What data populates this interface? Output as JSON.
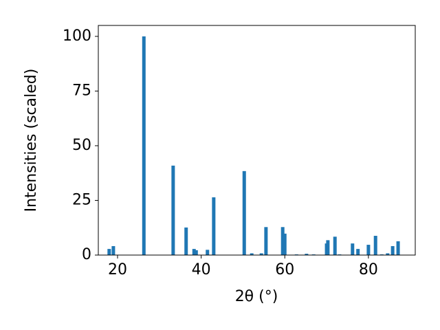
{
  "chart_data": {
    "type": "bar",
    "x": [
      18.0,
      19.0,
      26.3,
      33.3,
      36.4,
      38.3,
      38.8,
      41.5,
      43.0,
      50.3,
      52.1,
      54.4,
      55.5,
      59.5,
      60.0,
      62.8,
      65.2,
      66.9,
      70.0,
      70.3,
      72.0,
      73.1,
      76.2,
      77.5,
      80.0,
      81.7,
      83.2,
      84.6,
      85.8,
      87.1
    ],
    "values": [
      2.8,
      4.1,
      100,
      40.9,
      12.6,
      2.8,
      2.2,
      2.4,
      26.4,
      38.4,
      0.8,
      0.8,
      12.8,
      12.8,
      9.8,
      0.3,
      0.6,
      0.3,
      5.3,
      6.8,
      8.4,
      0.3,
      5.3,
      2.8,
      4.7,
      8.8,
      0.3,
      0.8,
      4.1,
      6.3
    ],
    "color": "#1f77b4",
    "xlabel": "2θ (°)",
    "ylabel": "Intensities (scaled)",
    "xlim": [
      15.4,
      91.2
    ],
    "xticks": [
      20,
      40,
      60,
      80
    ],
    "ylim": [
      0,
      105
    ],
    "yticks": [
      0,
      25,
      50,
      75,
      100
    ],
    "grid": false
  }
}
